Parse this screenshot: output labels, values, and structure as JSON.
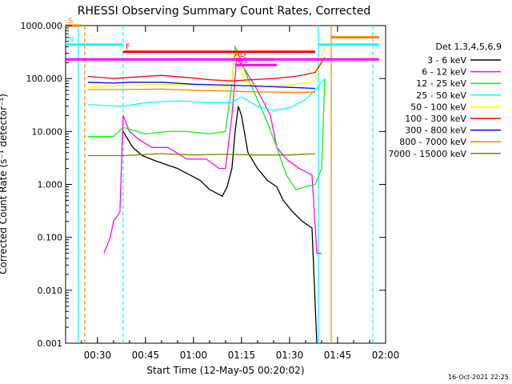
{
  "chart_data": {
    "type": "line",
    "title": "RHESSI Observing Summary Count Rates, Corrected",
    "xlabel": "Start Time (12-May-05 00:20:02)",
    "ylabel": "Corrected Count Rate (s⁻¹ detector⁻¹)",
    "y_scale": "log",
    "ylim": [
      0.001,
      1000
    ],
    "xlim": [
      "00:20:02",
      "02:00:00"
    ],
    "x_ticks": [
      "00:30",
      "00:45",
      "01:00",
      "01:15",
      "01:30",
      "01:45",
      "02:00"
    ],
    "y_ticks": [
      "1000.000",
      "100.000",
      "10.000",
      "1.000",
      "0.100",
      "0.010",
      "0.001"
    ],
    "timestamp": "16-Oct-2021 22:25",
    "legend_title": "Det 1,3,4,5,6,9",
    "legend_position": "right",
    "series": [
      {
        "name": "3 - 6 keV",
        "color": "#000000",
        "points": [
          [
            "00:38:00",
            10
          ],
          [
            "00:41:00",
            5
          ],
          [
            "00:44:00",
            3.5
          ],
          [
            "00:48:00",
            2.8
          ],
          [
            "00:55:00",
            2.0
          ],
          [
            "01:02:00",
            1.2
          ],
          [
            "01:05:00",
            0.8
          ],
          [
            "01:09:00",
            0.6
          ],
          [
            "01:10:30",
            0.9
          ],
          [
            "01:12:00",
            2.0
          ],
          [
            "01:13:00",
            10
          ],
          [
            "01:14:00",
            30
          ],
          [
            "01:15:00",
            20
          ],
          [
            "01:17:00",
            4
          ],
          [
            "01:20:00",
            2
          ],
          [
            "01:23:00",
            1.2
          ],
          [
            "01:26:00",
            0.9
          ],
          [
            "01:28:00",
            0.5
          ],
          [
            "01:31:00",
            0.3
          ],
          [
            "01:34:00",
            0.2
          ],
          [
            "01:37:00",
            0.15
          ],
          [
            "01:38:30",
            0.001
          ]
        ]
      },
      {
        "name": "6 - 12 keV",
        "color": "#ff00ff",
        "points": [
          [
            "00:32:00",
            0.05
          ],
          [
            "00:34:00",
            0.1
          ],
          [
            "00:35:00",
            0.2
          ],
          [
            "00:37:00",
            0.3
          ],
          [
            "00:38:00",
            20
          ],
          [
            "00:40:00",
            10
          ],
          [
            "00:43:00",
            7
          ],
          [
            "00:47:00",
            5
          ],
          [
            "00:52:00",
            5
          ],
          [
            "00:58:00",
            3
          ],
          [
            "01:04:00",
            3
          ],
          [
            "01:08:00",
            2
          ],
          [
            "01:10:00",
            2
          ],
          [
            "01:12:00",
            20
          ],
          [
            "01:13:30",
            250
          ],
          [
            "01:16:00",
            150
          ],
          [
            "01:20:00",
            60
          ],
          [
            "01:24:00",
            20
          ],
          [
            "01:26:00",
            5
          ],
          [
            "01:29:00",
            3
          ],
          [
            "01:33:00",
            2
          ],
          [
            "01:37:00",
            1.5
          ],
          [
            "01:38:30",
            0.05
          ],
          [
            "01:40:00",
            0.05
          ]
        ]
      },
      {
        "name": "12 - 25 keV",
        "color": "#00ff00",
        "points": [
          [
            "00:27:00",
            8
          ],
          [
            "00:35:00",
            8
          ],
          [
            "00:38:00",
            12
          ],
          [
            "00:45:00",
            9
          ],
          [
            "00:52:00",
            10
          ],
          [
            "00:58:00",
            10
          ],
          [
            "01:05:00",
            9
          ],
          [
            "01:10:00",
            10
          ],
          [
            "01:12:00",
            80
          ],
          [
            "01:13:00",
            400
          ],
          [
            "01:14:00",
            300
          ],
          [
            "01:17:00",
            100
          ],
          [
            "01:20:00",
            40
          ],
          [
            "01:23:00",
            15
          ],
          [
            "01:26:00",
            5
          ],
          [
            "01:29:00",
            1.5
          ],
          [
            "01:32:00",
            0.8
          ],
          [
            "01:35:00",
            0.9
          ],
          [
            "01:38:00",
            1.0
          ],
          [
            "01:40:00",
            2.0
          ],
          [
            "01:41:00",
            100
          ]
        ]
      },
      {
        "name": "25 - 50 keV",
        "color": "#00ffff",
        "points": [
          [
            "00:27:00",
            32
          ],
          [
            "00:38:00",
            30
          ],
          [
            "00:45:00",
            35
          ],
          [
            "00:55:00",
            38
          ],
          [
            "01:05:00",
            35
          ],
          [
            "01:12:00",
            35
          ],
          [
            "01:15:00",
            45
          ],
          [
            "01:20:00",
            30
          ],
          [
            "01:25:00",
            25
          ],
          [
            "01:30:00",
            28
          ],
          [
            "01:35:00",
            40
          ],
          [
            "01:38:00",
            60
          ],
          [
            "01:41:00",
            100
          ]
        ]
      },
      {
        "name": "50 - 100 keV",
        "color": "#ffff00",
        "points": [
          [
            "00:27:00",
            70
          ],
          [
            "00:40:00",
            75
          ],
          [
            "00:50:00",
            78
          ],
          [
            "01:00:00",
            75
          ],
          [
            "01:10:00",
            70
          ],
          [
            "01:12:00",
            80
          ],
          [
            "01:13:00",
            300
          ],
          [
            "01:14:00",
            200
          ],
          [
            "01:16:00",
            90
          ],
          [
            "01:20:00",
            70
          ],
          [
            "01:30:00",
            75
          ],
          [
            "01:38:00",
            90
          ],
          [
            "01:41:00",
            400
          ]
        ]
      },
      {
        "name": "100 - 300 keV",
        "color": "#ff0000",
        "points": [
          [
            "00:27:00",
            110
          ],
          [
            "00:35:00",
            100
          ],
          [
            "00:40:00",
            105
          ],
          [
            "00:50:00",
            115
          ],
          [
            "00:58:00",
            105
          ],
          [
            "01:05:00",
            95
          ],
          [
            "01:12:00",
            90
          ],
          [
            "01:18:00",
            95
          ],
          [
            "01:25:00",
            100
          ],
          [
            "01:32:00",
            110
          ],
          [
            "01:38:00",
            130
          ],
          [
            "01:41:00",
            250
          ]
        ]
      },
      {
        "name": "300 - 800 keV",
        "color": "#0000ff",
        "points": [
          [
            "00:27:00",
            85
          ],
          [
            "00:35:00",
            82
          ],
          [
            "00:40:00",
            85
          ],
          [
            "00:50:00",
            85
          ],
          [
            "01:00:00",
            78
          ],
          [
            "01:10:00",
            75
          ],
          [
            "01:20:00",
            72
          ],
          [
            "01:30:00",
            68
          ],
          [
            "01:38:00",
            65
          ]
        ]
      },
      {
        "name": "800 - 7000 keV",
        "color": "#ff8000",
        "points": [
          [
            "00:27:00",
            62
          ],
          [
            "00:38:00",
            62
          ],
          [
            "00:50:00",
            63
          ],
          [
            "01:00:00",
            60
          ],
          [
            "01:10:00",
            58
          ],
          [
            "01:20:00",
            56
          ],
          [
            "01:30:00",
            55
          ],
          [
            "01:38:00",
            55
          ]
        ]
      },
      {
        "name": "7000 - 15000 keV",
        "color": "#808000",
        "points": [
          [
            "00:27:00",
            3.5
          ],
          [
            "00:38:00",
            3.5
          ],
          [
            "00:50:00",
            3.8
          ],
          [
            "01:00:00",
            3.6
          ],
          [
            "01:10:00",
            3.7
          ],
          [
            "01:20:00",
            3.6
          ],
          [
            "01:30:00",
            3.6
          ],
          [
            "01:38:00",
            3.8
          ]
        ]
      }
    ],
    "vlines": [
      {
        "time": "00:24:00",
        "color": "#00ffff",
        "style": "solid"
      },
      {
        "time": "00:26:00",
        "color": "#ff8000",
        "style": "dashed"
      },
      {
        "time": "00:38:00",
        "color": "#00ffff",
        "style": "dashed"
      },
      {
        "time": "01:39:00",
        "color": "#00ffff",
        "style": "solid"
      },
      {
        "time": "01:43:00",
        "color": "#ff8000",
        "style": "solid"
      },
      {
        "time": "01:56:00",
        "color": "#00ffff",
        "style": "dashed"
      }
    ],
    "flag_bars": [
      {
        "label": "S",
        "color": "#ff8000",
        "x0": "00:20:02",
        "x1": "00:25:00",
        "y": 1000
      },
      {
        "label": "",
        "color": "#ff8000",
        "x0": "01:43:00",
        "x1": "01:58:00",
        "y": 600
      },
      {
        "label": "N",
        "color": "#00ffff",
        "x0": "00:20:02",
        "x1": "00:38:00",
        "y": 440
      },
      {
        "label": "",
        "color": "#00ffff",
        "x0": "01:39:00",
        "x1": "01:58:00",
        "y": 440
      },
      {
        "label": "F",
        "color": "#ff0000",
        "x0": "00:38:00",
        "x1": "01:38:00",
        "y": 320
      },
      {
        "label": "AD",
        "color": "#ff0000",
        "x0": "01:12:00",
        "x1": "01:25:00",
        "y": 230
      },
      {
        "label": "",
        "color": "#ff00ff",
        "x0": "00:20:02",
        "x1": "01:58:00",
        "y": 230
      },
      {
        "label": "A1",
        "color": "#ff00ff",
        "x0": "01:13:00",
        "x1": "01:26:00",
        "y": 180
      }
    ]
  }
}
